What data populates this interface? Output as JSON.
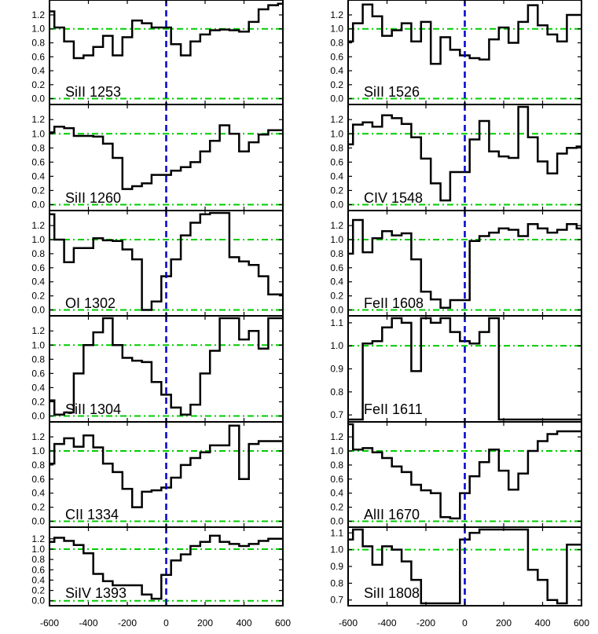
{
  "chart_data": {
    "type": "line",
    "grid": false,
    "panels": [
      {
        "label": "SiII 1253",
        "ylim": [
          -0.05,
          1.38
        ],
        "yticks": [
          0.0,
          0.2,
          0.4,
          0.6,
          0.8,
          1.0,
          1.2
        ],
        "x": [
          -600,
          -550,
          -500,
          -450,
          -400,
          -350,
          -300,
          -250,
          -200,
          -150,
          -100,
          -50,
          0,
          50,
          100,
          150,
          200,
          250,
          300,
          350,
          400,
          450,
          500,
          550,
          600
        ],
        "y": [
          1.25,
          1.02,
          0.82,
          0.58,
          0.62,
          0.74,
          0.9,
          0.62,
          0.88,
          1.12,
          1.08,
          1.02,
          1.02,
          0.78,
          0.62,
          0.82,
          0.92,
          0.98,
          0.99,
          0.98,
          0.96,
          1.1,
          1.28,
          1.34,
          1.36
        ]
      },
      {
        "label": "SiII 1526",
        "ylim": [
          -0.05,
          1.38
        ],
        "yticks": [
          0.0,
          0.2,
          0.4,
          0.6,
          0.8,
          1.0,
          1.2
        ],
        "x": [
          -600,
          -550,
          -500,
          -450,
          -400,
          -350,
          -300,
          -250,
          -200,
          -150,
          -100,
          -50,
          0,
          50,
          100,
          150,
          200,
          250,
          300,
          350,
          400,
          450,
          500,
          550,
          600
        ],
        "y": [
          0.82,
          1.08,
          1.35,
          1.18,
          0.9,
          0.98,
          1.08,
          0.82,
          1.1,
          0.5,
          0.88,
          0.7,
          0.62,
          0.58,
          0.56,
          0.85,
          1.02,
          0.8,
          1.1,
          1.34,
          1.05,
          0.92,
          0.82,
          1.2,
          1.2
        ]
      },
      {
        "label": "SiII 1260",
        "ylim": [
          -0.05,
          1.38
        ],
        "yticks": [
          0.0,
          0.2,
          0.4,
          0.6,
          0.8,
          1.0,
          1.2
        ],
        "x": [
          -600,
          -550,
          -500,
          -450,
          -400,
          -350,
          -300,
          -250,
          -200,
          -150,
          -100,
          -50,
          0,
          50,
          100,
          150,
          200,
          250,
          300,
          350,
          400,
          450,
          500,
          550,
          600
        ],
        "y": [
          1.02,
          1.1,
          1.08,
          0.97,
          0.97,
          0.96,
          0.86,
          0.66,
          0.22,
          0.26,
          0.3,
          0.42,
          0.42,
          0.48,
          0.53,
          0.6,
          0.75,
          0.9,
          1.12,
          1.0,
          0.75,
          0.88,
          0.99,
          1.05,
          1.05
        ]
      },
      {
        "label": "CIV 1548",
        "ylim": [
          -0.05,
          1.38
        ],
        "yticks": [
          0.0,
          0.2,
          0.4,
          0.6,
          0.8,
          1.0,
          1.2
        ],
        "x": [
          -600,
          -550,
          -500,
          -450,
          -400,
          -350,
          -300,
          -250,
          -200,
          -150,
          -100,
          -50,
          0,
          50,
          100,
          150,
          200,
          250,
          300,
          350,
          400,
          450,
          500,
          550,
          600
        ],
        "y": [
          0.85,
          1.13,
          1.16,
          1.1,
          1.26,
          1.22,
          1.14,
          0.95,
          0.65,
          0.3,
          0.06,
          0.46,
          0.46,
          0.92,
          1.18,
          0.75,
          0.68,
          0.66,
          1.38,
          0.95,
          0.61,
          0.44,
          0.72,
          0.8,
          0.82
        ]
      },
      {
        "label": "OI 1302",
        "ylim": [
          -0.05,
          1.38
        ],
        "yticks": [
          0.0,
          0.2,
          0.4,
          0.6,
          0.8,
          1.0,
          1.2
        ],
        "x": [
          -600,
          -550,
          -500,
          -450,
          -400,
          -350,
          -300,
          -250,
          -200,
          -150,
          -100,
          -50,
          0,
          50,
          100,
          150,
          200,
          250,
          300,
          350,
          400,
          450,
          500,
          550,
          600
        ],
        "y": [
          1.36,
          1.0,
          0.68,
          0.88,
          0.88,
          1.02,
          0.99,
          0.98,
          0.86,
          0.72,
          0.0,
          0.12,
          0.48,
          0.72,
          1.06,
          1.24,
          1.36,
          1.4,
          1.38,
          0.75,
          0.69,
          0.64,
          0.48,
          0.22,
          0.22
        ]
      },
      {
        "label": "FeII 1608",
        "ylim": [
          -0.05,
          1.38
        ],
        "yticks": [
          0.0,
          0.2,
          0.4,
          0.6,
          0.8,
          1.0,
          1.2
        ],
        "x": [
          -600,
          -550,
          -500,
          -450,
          -400,
          -350,
          -300,
          -250,
          -200,
          -150,
          -100,
          -50,
          0,
          50,
          100,
          150,
          200,
          250,
          300,
          350,
          400,
          450,
          500,
          550,
          600
        ],
        "y": [
          0.8,
          1.28,
          0.82,
          1.02,
          1.12,
          1.06,
          1.09,
          0.72,
          0.26,
          0.15,
          0.03,
          0.14,
          0.14,
          0.98,
          1.05,
          1.1,
          1.16,
          1.14,
          1.05,
          1.22,
          1.16,
          1.1,
          1.14,
          1.22,
          1.16
        ]
      },
      {
        "label": "SiII 1304",
        "ylim": [
          -0.05,
          1.38
        ],
        "yticks": [
          0.0,
          0.2,
          0.4,
          0.6,
          0.8,
          1.0,
          1.2
        ],
        "x": [
          -600,
          -550,
          -500,
          -450,
          -400,
          -350,
          -300,
          -250,
          -200,
          -150,
          -100,
          -50,
          0,
          50,
          100,
          150,
          200,
          250,
          300,
          350,
          400,
          450,
          500,
          550,
          600
        ],
        "y": [
          0.22,
          0.02,
          0.05,
          0.6,
          1.0,
          1.18,
          1.4,
          1.0,
          0.82,
          0.78,
          0.76,
          0.48,
          0.3,
          0.12,
          0.02,
          0.16,
          0.6,
          0.92,
          1.38,
          1.4,
          1.08,
          1.2,
          0.95,
          1.4,
          1.4
        ]
      },
      {
        "label": "FeII 1611",
        "ylim": [
          0.68,
          1.12
        ],
        "yticks": [
          0.7,
          0.8,
          0.9,
          1.0,
          1.1
        ],
        "x": [
          -600,
          -550,
          -500,
          -450,
          -400,
          -350,
          -300,
          -250,
          -200,
          -150,
          -100,
          -50,
          0,
          50,
          100,
          150,
          200,
          250,
          300,
          350,
          400,
          450,
          500,
          550,
          600
        ],
        "y": [
          0.68,
          0.68,
          1.01,
          1.02,
          1.08,
          1.12,
          1.1,
          0.89,
          1.12,
          1.1,
          1.12,
          1.06,
          1.02,
          1.01,
          1.06,
          1.12,
          0.68,
          0.68,
          0.68,
          0.68,
          0.68,
          0.68,
          0.68,
          0.68,
          0.68
        ]
      },
      {
        "label": "CII 1334",
        "ylim": [
          -0.05,
          1.38
        ],
        "yticks": [
          0.0,
          0.2,
          0.4,
          0.6,
          0.8,
          1.0,
          1.2
        ],
        "x": [
          -600,
          -550,
          -500,
          -450,
          -400,
          -350,
          -300,
          -250,
          -200,
          -150,
          -100,
          -50,
          0,
          50,
          100,
          150,
          200,
          250,
          300,
          350,
          400,
          450,
          500,
          550,
          600
        ],
        "y": [
          0.82,
          1.1,
          1.18,
          1.06,
          1.22,
          1.05,
          0.82,
          0.7,
          0.46,
          0.2,
          0.42,
          0.44,
          0.48,
          0.62,
          0.8,
          0.9,
          0.98,
          1.08,
          1.08,
          1.36,
          0.6,
          1.1,
          1.14,
          1.14,
          1.14
        ]
      },
      {
        "label": "AlII 1670",
        "ylim": [
          -0.05,
          1.38
        ],
        "yticks": [
          0.0,
          0.2,
          0.4,
          0.6,
          0.8,
          1.0,
          1.2
        ],
        "x": [
          -600,
          -550,
          -500,
          -450,
          -400,
          -350,
          -300,
          -250,
          -200,
          -150,
          -100,
          -50,
          0,
          50,
          100,
          150,
          200,
          250,
          300,
          350,
          400,
          450,
          500,
          550,
          600
        ],
        "y": [
          1.38,
          1.02,
          1.04,
          0.98,
          0.9,
          0.78,
          0.7,
          0.52,
          0.44,
          0.4,
          0.06,
          0.04,
          0.4,
          0.64,
          0.84,
          1.02,
          0.72,
          0.45,
          0.68,
          1.0,
          1.14,
          1.24,
          1.28,
          1.28,
          1.28
        ]
      },
      {
        "label": "SiIV 1393",
        "ylim": [
          -0.05,
          1.38
        ],
        "yticks": [
          0.0,
          0.2,
          0.4,
          0.6,
          0.8,
          1.0,
          1.2
        ],
        "x": [
          -600,
          -550,
          -500,
          -450,
          -400,
          -350,
          -300,
          -250,
          -200,
          -150,
          -100,
          -50,
          0,
          50,
          100,
          150,
          200,
          250,
          300,
          350,
          400,
          450,
          500,
          550,
          600
        ],
        "y": [
          1.14,
          1.22,
          1.16,
          1.08,
          0.92,
          0.52,
          0.38,
          0.3,
          0.3,
          0.3,
          0.12,
          0.04,
          0.5,
          0.78,
          0.9,
          1.06,
          1.14,
          1.26,
          1.14,
          1.1,
          1.06,
          1.1,
          1.16,
          1.2,
          1.2
        ]
      },
      {
        "label": "SiII 1808",
        "ylim": [
          0.68,
          1.12
        ],
        "yticks": [
          0.7,
          0.8,
          0.9,
          1.0,
          1.1
        ],
        "x": [
          -600,
          -550,
          -500,
          -450,
          -400,
          -350,
          -300,
          -250,
          -200,
          -150,
          -100,
          -50,
          0,
          50,
          100,
          150,
          200,
          250,
          300,
          350,
          400,
          450,
          500,
          550,
          600
        ],
        "y": [
          1.06,
          1.14,
          1.02,
          0.91,
          1.02,
          1.0,
          0.93,
          0.82,
          0.68,
          0.68,
          0.68,
          0.68,
          1.06,
          1.1,
          1.12,
          1.12,
          1.12,
          1.12,
          1.12,
          0.88,
          0.82,
          0.7,
          0.68,
          1.03,
          1.03
        ]
      }
    ],
    "xlim": [
      -600,
      600
    ],
    "xticks": [
      -600,
      -400,
      -200,
      0,
      200,
      400,
      600
    ],
    "reference_lines": {
      "continuum": 1.0,
      "zero": 0.0,
      "velocity_zero": 0
    },
    "colors": {
      "spectrum": "#000000",
      "reference": "#00cc00",
      "velocity_zero": "#0000cc"
    }
  }
}
